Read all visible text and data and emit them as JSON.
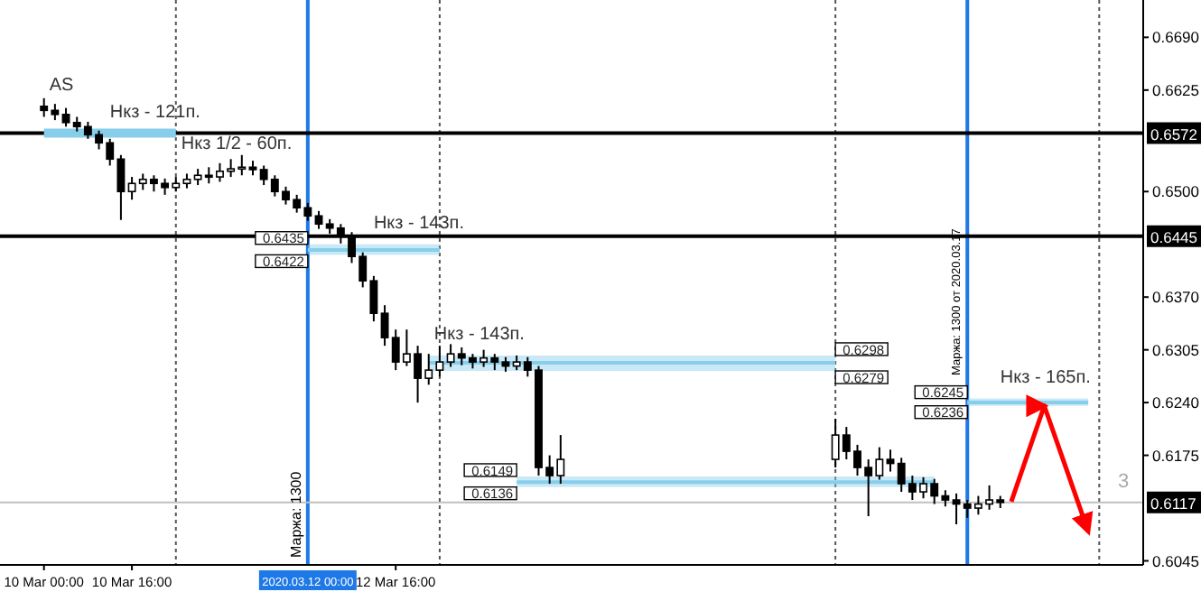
{
  "chart_data": {
    "type": "candlestick",
    "xlim": [
      "2020-03-09T16:00",
      "2020-03-18T08:00"
    ],
    "ylim": [
      0.604,
      0.6736
    ],
    "xticks": [
      {
        "value": "2020-03-10T00:00",
        "label": "10 Mar 00:00"
      },
      {
        "value": "2020-03-10T16:00",
        "label": "10 Mar 16:00"
      },
      {
        "value": "2020-03-12T16:00",
        "label": "12 Mar 16:00"
      }
    ],
    "yticks": [
      {
        "value": 0.669,
        "label": "0.6690"
      },
      0.6625,
      {
        "value": 0.65,
        "label": "0.6500"
      },
      {
        "value": 0.637,
        "label": "0.6370"
      },
      0.6305,
      {
        "value": 0.624,
        "label": "0.6240"
      },
      0.6175,
      0.6045
    ],
    "x": [
      "2020-03-10T00:00",
      "2020-03-10T02:00",
      "2020-03-10T04:00",
      "2020-03-10T06:00",
      "2020-03-10T08:00",
      "2020-03-10T10:00",
      "2020-03-10T12:00",
      "2020-03-10T14:00",
      "2020-03-10T16:00",
      "2020-03-10T18:00",
      "2020-03-10T20:00",
      "2020-03-10T22:00",
      "2020-03-11T00:00",
      "2020-03-11T02:00",
      "2020-03-11T04:00",
      "2020-03-11T06:00",
      "2020-03-11T08:00",
      "2020-03-11T10:00",
      "2020-03-11T12:00",
      "2020-03-11T14:00",
      "2020-03-11T16:00",
      "2020-03-11T18:00",
      "2020-03-11T20:00",
      "2020-03-11T22:00",
      "2020-03-12T00:00",
      "2020-03-12T02:00",
      "2020-03-12T04:00",
      "2020-03-12T06:00",
      "2020-03-12T08:00",
      "2020-03-12T10:00",
      "2020-03-12T12:00",
      "2020-03-12T14:00",
      "2020-03-12T16:00",
      "2020-03-12T18:00",
      "2020-03-12T20:00",
      "2020-03-12T22:00",
      "2020-03-13T00:00",
      "2020-03-13T02:00",
      "2020-03-13T04:00",
      "2020-03-13T06:00",
      "2020-03-13T08:00",
      "2020-03-13T10:00",
      "2020-03-13T12:00",
      "2020-03-13T14:00",
      "2020-03-13T16:00",
      "2020-03-13T18:00",
      "2020-03-13T20:00",
      "2020-03-13T22:00",
      "2020-03-16T00:00",
      "2020-03-16T02:00",
      "2020-03-16T04:00",
      "2020-03-16T06:00",
      "2020-03-16T08:00",
      "2020-03-16T10:00",
      "2020-03-16T12:00",
      "2020-03-16T14:00",
      "2020-03-16T16:00",
      "2020-03-16T18:00",
      "2020-03-16T20:00",
      "2020-03-16T22:00",
      "2020-03-17T00:00",
      "2020-03-17T02:00",
      "2020-03-17T04:00",
      "2020-03-17T06:00"
    ],
    "ohlc": [
      [
        0.6605,
        0.6615,
        0.6592,
        0.66
      ],
      [
        0.66,
        0.6608,
        0.6588,
        0.6595
      ],
      [
        0.6595,
        0.6603,
        0.658,
        0.6585
      ],
      [
        0.6585,
        0.6592,
        0.6574,
        0.658
      ],
      [
        0.658,
        0.6586,
        0.6565,
        0.657
      ],
      [
        0.657,
        0.6575,
        0.6552,
        0.656
      ],
      [
        0.656,
        0.6565,
        0.6532,
        0.654
      ],
      [
        0.654,
        0.6545,
        0.6465,
        0.65
      ],
      [
        0.65,
        0.6518,
        0.649,
        0.651
      ],
      [
        0.651,
        0.6522,
        0.6502,
        0.6515
      ],
      [
        0.6515,
        0.652,
        0.65,
        0.651
      ],
      [
        0.651,
        0.6516,
        0.6496,
        0.6505
      ],
      [
        0.6505,
        0.6518,
        0.65,
        0.651
      ],
      [
        0.651,
        0.6522,
        0.6504,
        0.6515
      ],
      [
        0.6515,
        0.6528,
        0.6508,
        0.652
      ],
      [
        0.652,
        0.653,
        0.651,
        0.6518
      ],
      [
        0.6518,
        0.6535,
        0.6512,
        0.6525
      ],
      [
        0.6525,
        0.654,
        0.6518,
        0.6528
      ],
      [
        0.6528,
        0.6545,
        0.652,
        0.653
      ],
      [
        0.653,
        0.6538,
        0.652,
        0.6527
      ],
      [
        0.6527,
        0.6532,
        0.6508,
        0.6515
      ],
      [
        0.6515,
        0.652,
        0.6494,
        0.65
      ],
      [
        0.65,
        0.6506,
        0.6484,
        0.649
      ],
      [
        0.649,
        0.6496,
        0.6474,
        0.648
      ],
      [
        0.648,
        0.6486,
        0.6464,
        0.647
      ],
      [
        0.647,
        0.6476,
        0.6454,
        0.646
      ],
      [
        0.646,
        0.6466,
        0.6448,
        0.6455
      ],
      [
        0.6455,
        0.646,
        0.6436,
        0.6445
      ],
      [
        0.6445,
        0.645,
        0.6412,
        0.642
      ],
      [
        0.642,
        0.6425,
        0.6382,
        0.639
      ],
      [
        0.639,
        0.6396,
        0.634,
        0.635
      ],
      [
        0.635,
        0.636,
        0.631,
        0.632
      ],
      [
        0.632,
        0.633,
        0.628,
        0.629
      ],
      [
        0.629,
        0.633,
        0.6285,
        0.63
      ],
      [
        0.63,
        0.631,
        0.624,
        0.627
      ],
      [
        0.627,
        0.63,
        0.6262,
        0.628
      ],
      [
        0.628,
        0.631,
        0.6272,
        0.629
      ],
      [
        0.629,
        0.6312,
        0.6284,
        0.63
      ],
      [
        0.63,
        0.6308,
        0.6286,
        0.6295
      ],
      [
        0.6295,
        0.63,
        0.6282,
        0.629
      ],
      [
        0.629,
        0.6305,
        0.6284,
        0.6295
      ],
      [
        0.6295,
        0.63,
        0.628,
        0.629
      ],
      [
        0.629,
        0.6296,
        0.6278,
        0.6285
      ],
      [
        0.6285,
        0.6298,
        0.628,
        0.629
      ],
      [
        0.629,
        0.6296,
        0.6272,
        0.628
      ],
      [
        0.628,
        0.6285,
        0.615,
        0.616
      ],
      [
        0.616,
        0.6175,
        0.614,
        0.615
      ],
      [
        0.615,
        0.62,
        0.614,
        0.617
      ],
      [
        0.617,
        0.622,
        0.616,
        0.62
      ],
      [
        0.62,
        0.621,
        0.617,
        0.618
      ],
      [
        0.618,
        0.6188,
        0.615,
        0.616
      ],
      [
        0.616,
        0.617,
        0.61,
        0.615
      ],
      [
        0.615,
        0.6185,
        0.6145,
        0.617
      ],
      [
        0.617,
        0.6182,
        0.6155,
        0.6165
      ],
      [
        0.6165,
        0.6172,
        0.613,
        0.614
      ],
      [
        0.614,
        0.615,
        0.612,
        0.613
      ],
      [
        0.613,
        0.6148,
        0.6122,
        0.614
      ],
      [
        0.614,
        0.6146,
        0.6115,
        0.6125
      ],
      [
        0.6125,
        0.6132,
        0.6112,
        0.612
      ],
      [
        0.612,
        0.6128,
        0.609,
        0.6115
      ],
      [
        0.6115,
        0.612,
        0.6098,
        0.611
      ],
      [
        0.611,
        0.6125,
        0.6102,
        0.6115
      ],
      [
        0.6115,
        0.6138,
        0.6108,
        0.612
      ],
      [
        0.612,
        0.6125,
        0.611,
        0.6117
      ]
    ],
    "series": [
      {
        "type": "line",
        "color": "#87ceeb",
        "x": [
          "2020-03-10T00:00",
          "2020-03-11T00:00"
        ],
        "values": [
          0.6572,
          0.6572
        ]
      },
      {
        "type": "line",
        "color": "#87ceeb",
        "x": [
          "2020-03-12T00:00",
          "2020-03-13T00:00"
        ],
        "values": [
          0.6428,
          0.6428
        ],
        "lower": [
          0.6422,
          0.6422
        ],
        "upper": [
          0.6435,
          0.6435
        ]
      },
      {
        "type": "line",
        "color": "#87ceeb",
        "x": [
          "2020-03-12T22:00",
          "2020-03-16T00:00"
        ],
        "values": [
          0.6289,
          0.6289
        ],
        "lower": [
          0.6279,
          0.6279
        ],
        "upper": [
          0.6298,
          0.6298
        ]
      },
      {
        "type": "line",
        "color": "#87ceeb",
        "x": [
          "2020-03-13T14:00",
          "2020-03-16T18:00"
        ],
        "values": [
          0.6142,
          0.6142
        ],
        "lower": [
          0.6136,
          0.6136
        ],
        "upper": [
          0.6149,
          0.6149
        ]
      },
      {
        "type": "line",
        "color": "#87ceeb",
        "x": [
          "2020-03-17T00:00",
          "2020-03-17T22:00"
        ],
        "values": [
          0.624,
          0.624
        ],
        "lower": [
          0.6236,
          0.6236
        ],
        "upper": [
          0.6245,
          0.6245
        ]
      },
      {
        "type": "line",
        "color": "#ff0000",
        "x": [
          "2020-03-17T08:00",
          "2020-03-17T14:00",
          "2020-03-17T22:00"
        ],
        "values": [
          0.6118,
          0.6236,
          0.6081
        ]
      }
    ],
    "ref_lines": [
      {
        "axis": "y",
        "value": 0.6572,
        "label": "0.6572",
        "color": "#000000",
        "line_style": "solid"
      },
      {
        "axis": "y",
        "value": 0.6445,
        "label": "0.6445",
        "color": "#000000",
        "line_style": "solid"
      },
      {
        "axis": "y",
        "value": 0.6117,
        "label": "0.6117",
        "color": "#c0c0c0",
        "line_style": "solid"
      },
      {
        "axis": "x",
        "value": "2020-03-11T00:00",
        "color": "#555555",
        "line_style": "dotted"
      },
      {
        "axis": "x",
        "value": "2020-03-13T00:00",
        "color": "#555555",
        "line_style": "dotted"
      },
      {
        "axis": "x",
        "value": "2020-03-16T00:00",
        "color": "#555555",
        "line_style": "dotted"
      },
      {
        "axis": "x",
        "value": "2020-03-18T00:00",
        "color": "#555555",
        "line_style": "dotted"
      },
      {
        "axis": "x",
        "value": "2020-03-12T00:00",
        "label": "2020.03.12 00:00",
        "color": "#1e78e6",
        "line_style": "solid"
      },
      {
        "axis": "x",
        "value": "2020-03-17T00:00",
        "label": "Маржа: 1300 от 2020.03.17",
        "color": "#1e78e6",
        "line_style": "solid"
      }
    ],
    "annotations": [
      {
        "text": "AS",
        "x": "2020-03-10T01:00",
        "y": 0.6605
      },
      {
        "text": "Нкз - 121п.",
        "x": "2020-03-10T12:00",
        "y": 0.6572
      },
      {
        "text": "Нкз 1/2 - 60п.",
        "x": "2020-03-11T01:00",
        "y": 0.6532
      },
      {
        "text": "Нкз - 143п.",
        "x": "2020-03-12T12:00",
        "y": 0.6435
      },
      {
        "text": "Нкз - 143п.",
        "x": "2020-03-12T23:00",
        "y": 0.6298
      },
      {
        "text": "Нкз - 165п.",
        "x": "2020-03-17T06:00",
        "y": 0.6245
      },
      {
        "text": "0.6435",
        "x": "2020-03-12T00:00",
        "y": 0.6435
      },
      {
        "text": "0.6422",
        "x": "2020-03-12T00:00",
        "y": 0.6422
      },
      {
        "text": "0.6298",
        "x": "2020-03-16T00:00",
        "y": 0.6298
      },
      {
        "text": "0.6279",
        "x": "2020-03-16T00:00",
        "y": 0.6279
      },
      {
        "text": "0.6149",
        "x": "2020-03-13T14:00",
        "y": 0.6149
      },
      {
        "text": "0.6136",
        "x": "2020-03-13T14:00",
        "y": 0.6136
      },
      {
        "text": "0.6245",
        "x": "2020-03-17T00:00",
        "y": 0.6245
      },
      {
        "text": "0.6236",
        "x": "2020-03-17T00:00",
        "y": 0.6236
      },
      "Маржа: 1300",
      "3"
    ]
  }
}
